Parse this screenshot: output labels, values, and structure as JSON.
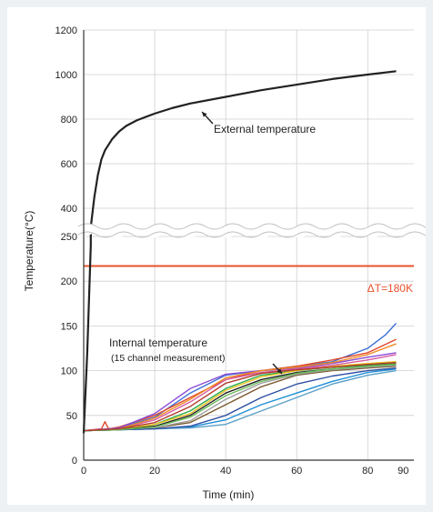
{
  "chart_data": {
    "type": "line",
    "xlabel": "Time (min)",
    "ylabel": "Temperature(°C)",
    "x_ticks": [
      "0",
      "20",
      "40",
      "60",
      "80",
      "90"
    ],
    "x_tick_values": [
      0,
      20,
      40,
      60,
      80,
      90
    ],
    "y_ticks_upper": [
      "400",
      "600",
      "800",
      "1000",
      "1200"
    ],
    "y_ticks_upper_values": [
      400,
      600,
      800,
      1000,
      1200
    ],
    "y_ticks_lower": [
      "0",
      "50",
      "100",
      "150",
      "200",
      "250"
    ],
    "y_ticks_lower_values": [
      0,
      50,
      100,
      150,
      200,
      250
    ],
    "xlim": [
      0,
      93
    ],
    "ylim_lower": [
      0,
      250
    ],
    "ylim_upper": [
      350,
      1200
    ],
    "axis_break": "between 250 and 400",
    "highlight_tick_color": "#e8522d",
    "threshold": {
      "label": "ΔT=180K",
      "value": 217,
      "color": "#e8522d"
    },
    "annotations": {
      "external": "External temperature",
      "internal_1": "Internal temperature",
      "internal_2": "(15 channel measurement)"
    },
    "external_series": {
      "color": "#222222",
      "x": [
        2,
        3,
        4,
        5,
        6,
        8,
        10,
        12,
        15,
        20,
        25,
        30,
        40,
        50,
        60,
        70,
        80,
        88
      ],
      "y": [
        300,
        450,
        550,
        620,
        660,
        710,
        745,
        770,
        795,
        825,
        850,
        870,
        900,
        930,
        955,
        980,
        1000,
        1015
      ]
    },
    "external_lead_in": {
      "x": [
        0,
        1,
        2
      ],
      "y": [
        30,
        120,
        240
      ]
    },
    "internal_series": [
      {
        "color": "#3b6fd6",
        "x": [
          0,
          10,
          20,
          30,
          40,
          50,
          60,
          70,
          80,
          85,
          88
        ],
        "y": [
          33,
          36,
          48,
          75,
          95,
          100,
          105,
          110,
          125,
          140,
          153
        ]
      },
      {
        "color": "#e0472b",
        "x": [
          0,
          5,
          6,
          7,
          10,
          20,
          30,
          40,
          50,
          60,
          70,
          80,
          88
        ],
        "y": [
          33,
          35,
          43,
          35,
          37,
          50,
          70,
          90,
          100,
          105,
          112,
          120,
          135
        ]
      },
      {
        "color": "#2aa84a",
        "x": [
          0,
          10,
          20,
          30,
          40,
          50,
          60,
          70,
          80,
          88
        ],
        "y": [
          33,
          34,
          40,
          55,
          80,
          95,
          100,
          104,
          106,
          108
        ]
      },
      {
        "color": "#e9c21f",
        "x": [
          0,
          10,
          20,
          30,
          40,
          50,
          60,
          70,
          80,
          88
        ],
        "y": [
          33,
          34,
          40,
          52,
          78,
          93,
          100,
          105,
          108,
          110
        ]
      },
      {
        "color": "#8a4bd6",
        "x": [
          0,
          10,
          20,
          30,
          40,
          50,
          60,
          70,
          80,
          88
        ],
        "y": [
          33,
          36,
          52,
          80,
          96,
          100,
          103,
          108,
          115,
          120
        ]
      },
      {
        "color": "#1e8fd6",
        "x": [
          0,
          10,
          20,
          30,
          40,
          50,
          60,
          70,
          80,
          88
        ],
        "y": [
          33,
          34,
          35,
          37,
          45,
          62,
          75,
          88,
          98,
          102
        ]
      },
      {
        "color": "#7a5a2e",
        "x": [
          0,
          10,
          20,
          30,
          40,
          50,
          60,
          70,
          80,
          88
        ],
        "y": [
          33,
          34,
          36,
          42,
          62,
          82,
          95,
          100,
          103,
          105
        ]
      },
      {
        "color": "#222222",
        "x": [
          0,
          10,
          20,
          30,
          40,
          50,
          60,
          70,
          80,
          88
        ],
        "y": [
          33,
          34,
          38,
          50,
          75,
          90,
          98,
          102,
          105,
          107
        ]
      },
      {
        "color": "#d65aa0",
        "x": [
          0,
          10,
          20,
          30,
          40,
          50,
          60,
          70,
          80,
          88
        ],
        "y": [
          33,
          35,
          45,
          65,
          90,
          98,
          102,
          106,
          112,
          118
        ]
      },
      {
        "color": "#f08a24",
        "x": [
          0,
          10,
          20,
          30,
          40,
          50,
          60,
          70,
          80,
          88
        ],
        "y": [
          33,
          35,
          47,
          68,
          92,
          100,
          104,
          109,
          118,
          130
        ]
      },
      {
        "color": "#5aa0c8",
        "x": [
          0,
          10,
          20,
          30,
          40,
          50,
          60,
          70,
          80,
          88
        ],
        "y": [
          33,
          34,
          35,
          36,
          40,
          55,
          70,
          85,
          95,
          100
        ]
      },
      {
        "color": "#9c9c9c",
        "x": [
          0,
          10,
          20,
          30,
          40,
          50,
          60,
          70,
          80,
          88
        ],
        "y": [
          33,
          34,
          36,
          44,
          68,
          86,
          96,
          101,
          104,
          106
        ]
      },
      {
        "color": "#2d4fa3",
        "x": [
          0,
          10,
          20,
          30,
          40,
          50,
          60,
          70,
          80,
          88
        ],
        "y": [
          33,
          34,
          35,
          38,
          50,
          70,
          85,
          94,
          100,
          103
        ]
      },
      {
        "color": "#6bbd5a",
        "x": [
          0,
          10,
          20,
          30,
          40,
          50,
          60,
          70,
          80,
          88
        ],
        "y": [
          33,
          34,
          37,
          48,
          72,
          88,
          97,
          102,
          105,
          107
        ]
      },
      {
        "color": "#b23a2a",
        "x": [
          0,
          10,
          20,
          30,
          40,
          50,
          60,
          70,
          80,
          88
        ],
        "y": [
          33,
          35,
          42,
          60,
          86,
          97,
          101,
          104,
          107,
          109
        ]
      }
    ]
  }
}
